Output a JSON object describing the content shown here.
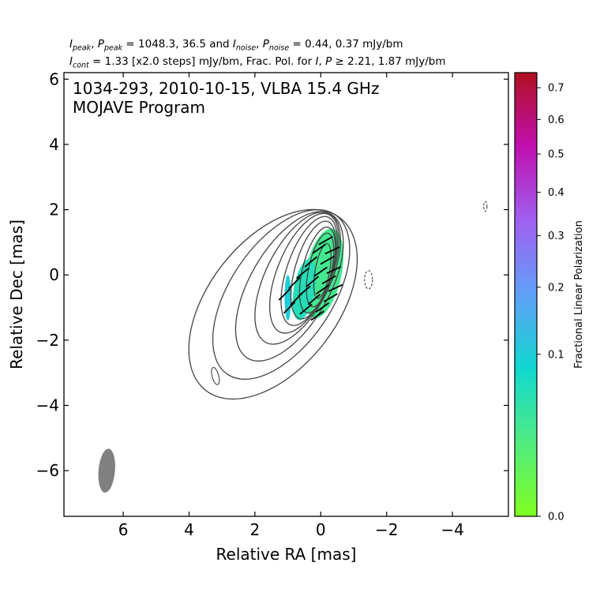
{
  "header": {
    "line1": {
      "i": "I",
      "i_sub": "peak",
      "sep1": ", ",
      "p": "P",
      "p_sub": "peak",
      "eq1": " = 1048.3, 36.5 and ",
      "i2": "I",
      "i2_sub": "noise",
      "sep2": ", ",
      "p2": "P",
      "p2_sub": "noise",
      "eq2": " = 0.44, 0.37 mJy/bm"
    },
    "line2": {
      "i": "I",
      "i_sub": "cont",
      "text1": " = 1.33 [x2.0 steps] mJy/bm, Frac. Pol. for ",
      "i2": "I",
      "sep": ", ",
      "p": "P",
      "text2": " ≥ 2.21, 1.87 mJy/bm"
    }
  },
  "chart_data": {
    "type": "contour",
    "annotation": [
      "1034-293, 2010-10-15, VLBA 15.4 GHz",
      "MOJAVE Program"
    ],
    "xlabel": "Relative RA [mas]",
    "ylabel": "Relative Dec [mas]",
    "xlim": [
      7.8,
      -5.7
    ],
    "ylim": [
      -7.4,
      6.2
    ],
    "xticks": [
      6,
      4,
      2,
      0,
      -2,
      -4
    ],
    "yticks": [
      6,
      4,
      2,
      0,
      -2,
      -4,
      -6
    ],
    "xtick_labels": [
      "6",
      "4",
      "2",
      "0",
      "−2",
      "−4"
    ],
    "ytick_labels": [
      "6",
      "4",
      "2",
      "0",
      "−2",
      "−4",
      "−6"
    ],
    "peak_intensity_mJy_per_beam": 1048.3,
    "peak_polarized_mJy_per_beam": 36.5,
    "noise_I_mJy_per_beam": 0.44,
    "noise_P_mJy_per_beam": 0.37,
    "contour_base_mJy_per_beam": 1.33,
    "contour_step_factor": 2.0,
    "contour_color": "#444444",
    "contours": [
      {
        "level": 1,
        "center": [
          1.45,
          -0.9
        ],
        "semi_major": 3.35,
        "semi_minor": 1.95,
        "pa_deg": 38
      },
      {
        "level": 2,
        "center": [
          1.2,
          -0.6
        ],
        "semi_major": 2.95,
        "semi_minor": 1.55,
        "pa_deg": 34
      },
      {
        "level": 3,
        "center": [
          0.95,
          -0.35
        ],
        "semi_major": 2.55,
        "semi_minor": 1.2,
        "pa_deg": 30
      },
      {
        "level": 4,
        "center": [
          0.7,
          -0.1
        ],
        "semi_major": 2.2,
        "semi_minor": 0.98,
        "pa_deg": 26
      },
      {
        "level": 5,
        "center": [
          0.5,
          0.05
        ],
        "semi_major": 1.95,
        "semi_minor": 0.82,
        "pa_deg": 22
      },
      {
        "level": 6,
        "center": [
          0.35,
          0.12
        ],
        "semi_major": 1.75,
        "semi_minor": 0.68,
        "pa_deg": 19
      },
      {
        "level": 7,
        "center": [
          0.22,
          0.15
        ],
        "semi_major": 1.55,
        "semi_minor": 0.56,
        "pa_deg": 16
      },
      {
        "level": 8,
        "center": [
          0.1,
          0.15
        ],
        "semi_major": 1.35,
        "semi_minor": 0.45,
        "pa_deg": 14
      },
      {
        "level": 9,
        "center": [
          0.02,
          0.15
        ],
        "semi_major": 1.15,
        "semi_minor": 0.35,
        "pa_deg": 12
      },
      {
        "level": 10,
        "center": [
          -0.05,
          0.12
        ],
        "semi_major": 0.85,
        "semi_minor": 0.22,
        "pa_deg": 10
      }
    ],
    "isolated_contours": [
      {
        "center": [
          3.2,
          -3.1
        ],
        "semi_major": 0.27,
        "semi_minor": 0.1,
        "pa_deg": -15,
        "dashed": false
      },
      {
        "center": [
          -1.45,
          -0.15
        ],
        "semi_major": 0.28,
        "semi_minor": 0.12,
        "pa_deg": 0,
        "dashed": true
      },
      {
        "center": [
          -5.0,
          2.1
        ],
        "semi_major": 0.15,
        "semi_minor": 0.05,
        "pa_deg": 0,
        "dashed": true
      }
    ],
    "fractional_polarization_regions": [
      {
        "center": [
          -0.08,
          0.05
        ],
        "semi_major": 1.4,
        "semi_minor": 0.55,
        "pa_deg": 12,
        "value": 0.03
      },
      {
        "center": [
          0.5,
          -0.45
        ],
        "semi_major": 0.95,
        "semi_minor": 0.32,
        "pa_deg": 10,
        "value": 0.06
      },
      {
        "center": [
          1.0,
          -0.7
        ],
        "semi_major": 0.7,
        "semi_minor": 0.1,
        "pa_deg": 0,
        "value": 0.1
      }
    ],
    "evpa_vectors": [
      {
        "x": 1.1,
        "y": -0.6,
        "angle_deg": 45
      },
      {
        "x": 0.95,
        "y": -1.0,
        "angle_deg": 45
      },
      {
        "x": 0.8,
        "y": -0.25,
        "angle_deg": 45
      },
      {
        "x": 0.75,
        "y": -0.75,
        "angle_deg": 45
      },
      {
        "x": 0.55,
        "y": 0.05,
        "angle_deg": 40
      },
      {
        "x": 0.5,
        "y": -0.5,
        "angle_deg": 40
      },
      {
        "x": 0.45,
        "y": -1.05,
        "angle_deg": 40
      },
      {
        "x": 0.3,
        "y": 0.4,
        "angle_deg": 40
      },
      {
        "x": 0.25,
        "y": -0.2,
        "angle_deg": 40
      },
      {
        "x": 0.2,
        "y": -0.75,
        "angle_deg": 40
      },
      {
        "x": 0.1,
        "y": -1.25,
        "angle_deg": 35
      },
      {
        "x": 0.05,
        "y": 0.8,
        "angle_deg": 35
      },
      {
        "x": 0.0,
        "y": 0.1,
        "angle_deg": 35
      },
      {
        "x": -0.05,
        "y": -0.45,
        "angle_deg": 35
      },
      {
        "x": -0.05,
        "y": -1.0,
        "angle_deg": 35
      },
      {
        "x": -0.15,
        "y": 1.05,
        "angle_deg": 30
      },
      {
        "x": -0.2,
        "y": 0.45,
        "angle_deg": 30
      },
      {
        "x": -0.25,
        "y": -0.15,
        "angle_deg": 30
      },
      {
        "x": -0.3,
        "y": -0.7,
        "angle_deg": 30
      },
      {
        "x": -0.35,
        "y": 0.75,
        "angle_deg": 25
      },
      {
        "x": -0.4,
        "y": 0.15,
        "angle_deg": 25
      },
      {
        "x": -0.45,
        "y": -0.4,
        "angle_deg": 25
      }
    ],
    "beam": {
      "center": [
        6.5,
        -6.0
      ],
      "major_mas": 1.35,
      "minor_mas": 0.5,
      "pa_deg": 5,
      "color": "#808080"
    },
    "colorbar": {
      "label": "Fractional Linear Polarization",
      "vmin": 0.0,
      "vmax": 0.75,
      "ticks": [
        0.0,
        0.1,
        0.2,
        0.3,
        0.4,
        0.5,
        0.6,
        0.7
      ],
      "tick_labels": [
        "0.0",
        "0.1",
        "0.2",
        "0.3",
        "0.4",
        "0.5",
        "0.6",
        "0.7"
      ],
      "scale": "sqrt",
      "colors": [
        "#80ff20",
        "#50ec80",
        "#10d8d0",
        "#60a0f8",
        "#a060f0",
        "#c010b0",
        "#b01020"
      ]
    }
  }
}
